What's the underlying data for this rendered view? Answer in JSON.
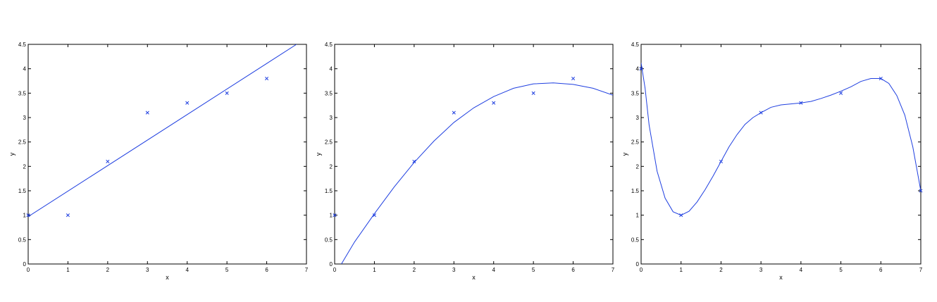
{
  "chart_data": [
    {
      "type": "scatter",
      "xlabel": "x",
      "ylabel": "y",
      "xlim": [
        0,
        7
      ],
      "ylim": [
        0,
        4.5
      ],
      "xticks": [
        "0",
        "1",
        "2",
        "3",
        "4",
        "5",
        "6",
        "7"
      ],
      "yticks": [
        "0",
        "0.5",
        "1",
        "1.5",
        "2",
        "2.5",
        "3",
        "3.5",
        "4",
        "4.5"
      ],
      "grid": false,
      "series": [
        {
          "kind": "points",
          "marker": "x",
          "color": "#1f3fe0",
          "x": [
            0,
            1,
            2,
            3,
            4,
            5,
            6
          ],
          "y": [
            1.0,
            1.0,
            2.1,
            3.1,
            3.3,
            3.5,
            3.8
          ]
        },
        {
          "kind": "line",
          "color": "#1f3fe0",
          "x": [
            0,
            6.75
          ],
          "y": [
            0.97,
            4.5
          ]
        }
      ]
    },
    {
      "type": "scatter",
      "xlabel": "x",
      "ylabel": "y",
      "xlim": [
        0,
        7
      ],
      "ylim": [
        0,
        4.5
      ],
      "xticks": [
        "0",
        "1",
        "2",
        "3",
        "4",
        "5",
        "6",
        "7"
      ],
      "yticks": [
        "0",
        "0.5",
        "1",
        "1.5",
        "2",
        "2.5",
        "3",
        "3.5",
        "4",
        "4.5"
      ],
      "grid": false,
      "series": [
        {
          "kind": "points",
          "marker": "x",
          "color": "#1f3fe0",
          "x": [
            0,
            1,
            2,
            3,
            4,
            5,
            6
          ],
          "y": [
            1.0,
            1.0,
            2.1,
            3.1,
            3.3,
            3.5,
            3.8
          ]
        },
        {
          "kind": "line",
          "color": "#1f3fe0",
          "x": [
            0.17,
            0.5,
            1,
            1.5,
            2,
            2.5,
            3,
            3.5,
            4,
            4.5,
            5,
            5.5,
            6,
            6.5,
            7
          ],
          "y": [
            0.0,
            0.45,
            1.03,
            1.58,
            2.08,
            2.52,
            2.9,
            3.2,
            3.43,
            3.6,
            3.69,
            3.71,
            3.68,
            3.6,
            3.46
          ]
        }
      ]
    },
    {
      "type": "scatter",
      "xlabel": "x",
      "ylabel": "y",
      "xlim": [
        0,
        7
      ],
      "ylim": [
        0,
        4.5
      ],
      "xticks": [
        "0",
        "1",
        "2",
        "3",
        "4",
        "5",
        "6",
        "7"
      ],
      "yticks": [
        "0",
        "0.5",
        "1",
        "1.5",
        "2",
        "2.5",
        "3",
        "3.5",
        "4",
        "4.5"
      ],
      "grid": false,
      "series": [
        {
          "kind": "points",
          "marker": "x",
          "color": "#1f3fe0",
          "x": [
            0,
            1,
            2,
            3,
            4,
            5,
            6,
            7
          ],
          "y": [
            4.0,
            1.0,
            2.1,
            3.1,
            3.3,
            3.5,
            3.8,
            1.5
          ]
        },
        {
          "kind": "line",
          "color": "#1f3fe0",
          "x": [
            0,
            0.1,
            0.2,
            0.4,
            0.6,
            0.8,
            1.0,
            1.2,
            1.4,
            1.6,
            1.8,
            2.0,
            2.2,
            2.4,
            2.6,
            2.8,
            3.0,
            3.25,
            3.5,
            3.75,
            4.0,
            4.25,
            4.5,
            4.75,
            5.0,
            5.25,
            5.5,
            5.75,
            6.0,
            6.2,
            6.4,
            6.6,
            6.8,
            7.0
          ],
          "y": [
            4.12,
            3.6,
            2.85,
            1.9,
            1.35,
            1.07,
            1.0,
            1.08,
            1.27,
            1.52,
            1.8,
            2.1,
            2.4,
            2.65,
            2.86,
            3.0,
            3.1,
            3.21,
            3.26,
            3.28,
            3.3,
            3.33,
            3.39,
            3.46,
            3.54,
            3.63,
            3.74,
            3.8,
            3.8,
            3.7,
            3.45,
            3.05,
            2.4,
            1.5
          ]
        }
      ]
    }
  ]
}
